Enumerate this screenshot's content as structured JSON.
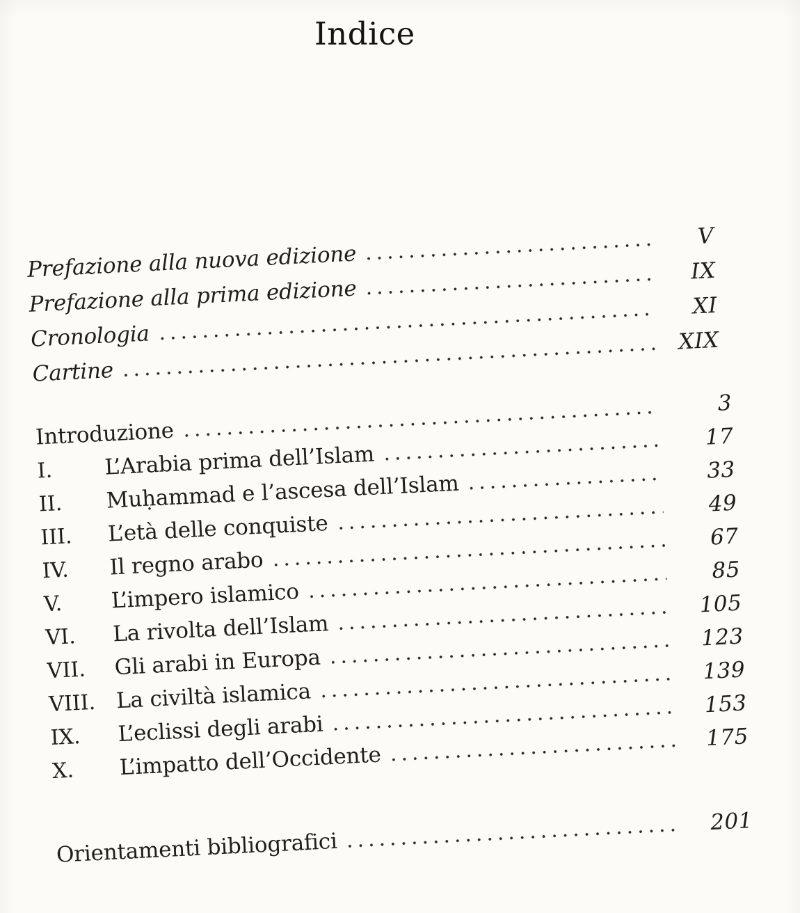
{
  "page": {
    "title": "Indice",
    "language": "Italian",
    "text_color": "#201e1a",
    "paper_color": "#fcfbf8"
  },
  "front_matter": [
    {
      "label": "Prefazione alla nuova edizione",
      "page": "V"
    },
    {
      "label": "Prefazione alla prima edizione",
      "page": "IX"
    },
    {
      "label": "Cronologia",
      "page": "XI"
    },
    {
      "label": "Cartine",
      "page": "XIX"
    }
  ],
  "chapters": [
    {
      "numeral": "",
      "label": "Introduzione",
      "page": "3"
    },
    {
      "numeral": "I.",
      "label": "L’Arabia prima dell’Islam",
      "page": "17"
    },
    {
      "numeral": "II.",
      "label": "Muḥammad e l’ascesa dell’Islam",
      "page": "33"
    },
    {
      "numeral": "III.",
      "label": "L’età delle conquiste",
      "page": "49"
    },
    {
      "numeral": "IV.",
      "label": "Il regno arabo",
      "page": "67"
    },
    {
      "numeral": "V.",
      "label": "L’impero islamico",
      "page": "85"
    },
    {
      "numeral": "VI.",
      "label": "La rivolta dell’Islam",
      "page": "105"
    },
    {
      "numeral": "VII.",
      "label": "Gli arabi in Europa",
      "page": "123"
    },
    {
      "numeral": "VIII.",
      "label": "La civiltà islamica",
      "page": "139"
    },
    {
      "numeral": "IX.",
      "label": "L’eclissi degli arabi",
      "page": "153"
    },
    {
      "numeral": "X.",
      "label": "L’impatto dell’Occidente",
      "page": "175"
    }
  ],
  "back_matter": [
    {
      "label": "Orientamenti bibliografici",
      "page": "201"
    }
  ]
}
